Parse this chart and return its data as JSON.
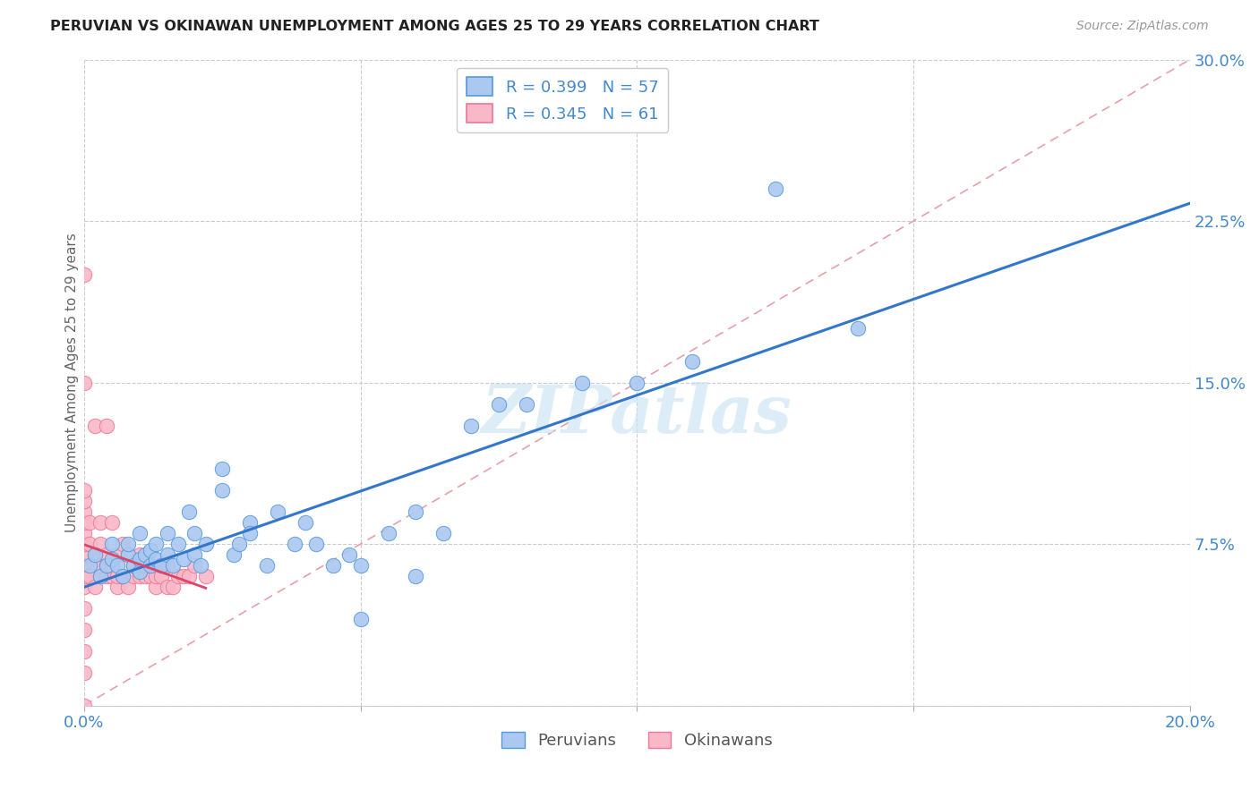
{
  "title": "PERUVIAN VS OKINAWAN UNEMPLOYMENT AMONG AGES 25 TO 29 YEARS CORRELATION CHART",
  "source": "Source: ZipAtlas.com",
  "ylabel": "Unemployment Among Ages 25 to 29 years",
  "xlim": [
    0.0,
    0.2
  ],
  "ylim": [
    0.0,
    0.3
  ],
  "xticks": [
    0.0,
    0.05,
    0.1,
    0.15,
    0.2
  ],
  "yticks": [
    0.0,
    0.075,
    0.15,
    0.225,
    0.3
  ],
  "peruvian_color": "#aac8f0",
  "peruvian_edge": "#5599dd",
  "okinawan_color": "#f9b8c8",
  "okinawan_edge": "#ee7799",
  "peruvian_R": 0.399,
  "peruvian_N": 57,
  "okinawan_R": 0.345,
  "okinawan_N": 61,
  "trend_blue": "#3377cc",
  "trend_pink": "#dd4466",
  "diag_color": "#e8a0a8",
  "watermark": "ZIPatlas",
  "peruvian_x": [
    0.001,
    0.002,
    0.003,
    0.004,
    0.005,
    0.005,
    0.006,
    0.007,
    0.008,
    0.008,
    0.009,
    0.01,
    0.01,
    0.01,
    0.011,
    0.012,
    0.012,
    0.013,
    0.013,
    0.014,
    0.015,
    0.015,
    0.016,
    0.017,
    0.018,
    0.019,
    0.02,
    0.02,
    0.021,
    0.022,
    0.025,
    0.025,
    0.027,
    0.028,
    0.03,
    0.03,
    0.033,
    0.035,
    0.038,
    0.04,
    0.042,
    0.045,
    0.048,
    0.05,
    0.05,
    0.055,
    0.06,
    0.06,
    0.065,
    0.07,
    0.075,
    0.08,
    0.09,
    0.1,
    0.11,
    0.125,
    0.14
  ],
  "peruvian_y": [
    0.065,
    0.07,
    0.06,
    0.065,
    0.068,
    0.075,
    0.065,
    0.06,
    0.07,
    0.075,
    0.065,
    0.062,
    0.068,
    0.08,
    0.07,
    0.065,
    0.072,
    0.068,
    0.075,
    0.065,
    0.07,
    0.08,
    0.065,
    0.075,
    0.068,
    0.09,
    0.07,
    0.08,
    0.065,
    0.075,
    0.1,
    0.11,
    0.07,
    0.075,
    0.085,
    0.08,
    0.065,
    0.09,
    0.075,
    0.085,
    0.075,
    0.065,
    0.07,
    0.04,
    0.065,
    0.08,
    0.06,
    0.09,
    0.08,
    0.13,
    0.14,
    0.14,
    0.15,
    0.15,
    0.16,
    0.24,
    0.175
  ],
  "okinawan_x": [
    0.0,
    0.0,
    0.0,
    0.0,
    0.0,
    0.0,
    0.0,
    0.0,
    0.0,
    0.0,
    0.0,
    0.0,
    0.0,
    0.0,
    0.0,
    0.0,
    0.0,
    0.001,
    0.001,
    0.001,
    0.002,
    0.002,
    0.002,
    0.003,
    0.003,
    0.003,
    0.003,
    0.004,
    0.004,
    0.004,
    0.004,
    0.005,
    0.005,
    0.005,
    0.006,
    0.006,
    0.006,
    0.007,
    0.007,
    0.008,
    0.008,
    0.009,
    0.009,
    0.01,
    0.01,
    0.011,
    0.011,
    0.012,
    0.012,
    0.013,
    0.013,
    0.014,
    0.014,
    0.015,
    0.015,
    0.016,
    0.017,
    0.018,
    0.019,
    0.02,
    0.022
  ],
  "okinawan_y": [
    0.0,
    0.015,
    0.025,
    0.035,
    0.045,
    0.055,
    0.06,
    0.065,
    0.07,
    0.075,
    0.08,
    0.085,
    0.09,
    0.095,
    0.1,
    0.2,
    0.15,
    0.06,
    0.075,
    0.085,
    0.055,
    0.07,
    0.13,
    0.06,
    0.065,
    0.075,
    0.085,
    0.06,
    0.065,
    0.07,
    0.13,
    0.06,
    0.065,
    0.085,
    0.055,
    0.06,
    0.07,
    0.06,
    0.075,
    0.055,
    0.07,
    0.06,
    0.065,
    0.06,
    0.07,
    0.06,
    0.065,
    0.06,
    0.065,
    0.055,
    0.06,
    0.06,
    0.065,
    0.055,
    0.065,
    0.055,
    0.06,
    0.06,
    0.06,
    0.065,
    0.06
  ]
}
